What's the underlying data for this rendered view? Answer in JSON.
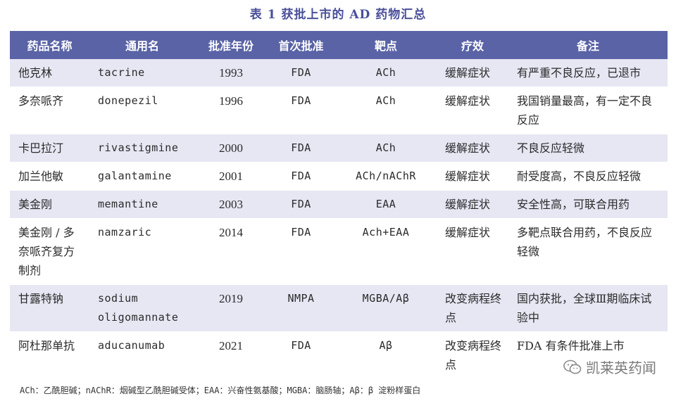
{
  "title": "表 1   获批上市的 AD 药物汇总",
  "columns": [
    "药品名称",
    "通用名",
    "批准年份",
    "首次批准",
    "靶点",
    "疗效",
    "备注"
  ],
  "rows": [
    {
      "name": "他克林",
      "generic": "tacrine",
      "year": "1993",
      "first": "FDA",
      "target": "ACh",
      "effect": "缓解症状",
      "note": "有严重不良反应，已退市"
    },
    {
      "name": "多奈哌齐",
      "generic": "donepezil",
      "year": "1996",
      "first": "FDA",
      "target": "ACh",
      "effect": "缓解症状",
      "note": "我国销量最高，有一定不良反应"
    },
    {
      "name": "卡巴拉汀",
      "generic": "rivastigmine",
      "year": "2000",
      "first": "FDA",
      "target": "ACh",
      "effect": "缓解症状",
      "note": "不良反应轻微"
    },
    {
      "name": "加兰他敏",
      "generic": "galantamine",
      "year": "2001",
      "first": "FDA",
      "target": "ACh/nAChR",
      "effect": "缓解症状",
      "note": "耐受度高，不良反应轻微"
    },
    {
      "name": "美金刚",
      "generic": "memantine",
      "year": "2003",
      "first": "FDA",
      "target": "EAA",
      "effect": "缓解症状",
      "note": "安全性高，可联合用药"
    },
    {
      "name": "美金刚 / 多奈哌齐复方制剂",
      "generic": "namzaric",
      "year": "2014",
      "first": "FDA",
      "target": "Ach+EAA",
      "effect": "缓解症状",
      "note": "多靶点联合用药，不良反应轻微"
    },
    {
      "name": "甘露特钠",
      "generic": "sodium oligomannate",
      "year": "2019",
      "first": "NMPA",
      "target": "MGBA/Aβ",
      "effect": "改变病程终点",
      "note": "国内获批，全球Ⅲ期临床试验中"
    },
    {
      "name": "阿杜那单抗",
      "generic": "aducanumab",
      "year": "2021",
      "first": "FDA",
      "target": "Aβ",
      "effect": "改变病程终点",
      "note": "FDA 有条件批准上市"
    }
  ],
  "footnote": "ACh：乙酰胆碱；nAChR：烟碱型乙酰胆碱受体；EAA：兴奋性氨基酸；MGBA：脑肠轴；Aβ：β 淀粉样蛋白",
  "watermark": {
    "text": "凯莱英药闻",
    "icon": "wechat-icon"
  },
  "colors": {
    "header_bg": "#5a63a6",
    "row_shade": "#e6e7f3",
    "title": "#4a4f9a"
  }
}
